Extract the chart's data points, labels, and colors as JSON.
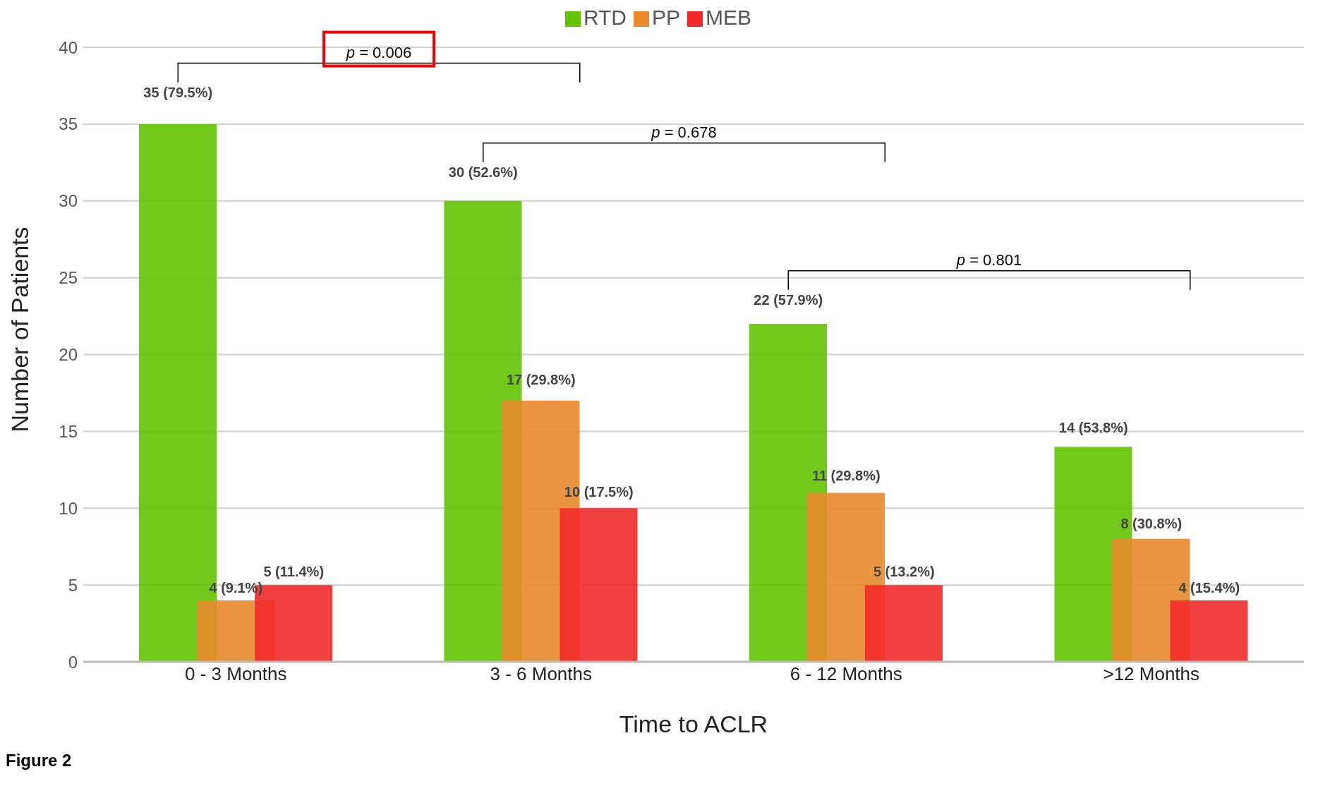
{
  "chart_data": {
    "type": "bar",
    "xlabel": "Time to ACLR",
    "ylabel": "Number of Patients",
    "categories": [
      "0 - 3 Months",
      "3 - 6 Months",
      "6 - 12 Months",
      ">12 Months"
    ],
    "series": [
      {
        "name": "RTD",
        "color": "#62c400",
        "values": [
          35,
          30,
          22,
          14
        ],
        "value_labels": [
          "35 (79.5%)",
          "30 (52.6%)",
          "22 (57.9%)",
          "14 (53.8%)"
        ]
      },
      {
        "name": "PP",
        "color": "#e8892c",
        "values": [
          4,
          17,
          11,
          8
        ],
        "value_labels": [
          "4 (9.1%)",
          "17 (29.8%)",
          "11 (29.8%)",
          "8 (30.8%)"
        ]
      },
      {
        "name": "MEB",
        "color": "#f02a2a",
        "values": [
          5,
          10,
          5,
          4
        ],
        "value_labels": [
          "5 (11.4%)",
          "10 (17.5%)",
          "5 (13.2%)",
          "4 (15.4%)"
        ]
      }
    ],
    "ylim": [
      0,
      40
    ],
    "yticks": [
      0,
      5,
      10,
      15,
      20,
      25,
      30,
      35,
      40
    ],
    "grid": "y",
    "legend": "top",
    "annotations": [
      "p = 0.006",
      "p = 0.678",
      "p = 0.801",
      "Figure 2"
    ]
  }
}
